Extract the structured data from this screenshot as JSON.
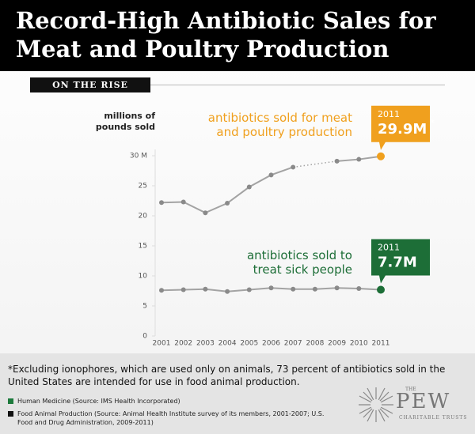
{
  "header": {
    "title": "Record-High Antibiotic Sales for Meat and Poultry Production",
    "section": "ON THE RISE"
  },
  "chart_data": {
    "type": "line",
    "y_label": "millions of pounds sold",
    "categories": [
      "2001",
      "2002",
      "2003",
      "2004",
      "2005",
      "2006",
      "2007",
      "2008",
      "2009",
      "2010",
      "2011"
    ],
    "ylim": [
      0,
      30
    ],
    "yticks": [
      0,
      5,
      10,
      15,
      20,
      25,
      {
        "value": 30,
        "label": "30 M"
      }
    ],
    "line_color": "#a3a3a3",
    "series": [
      {
        "name": "antibiotics sold for meat and poultry production",
        "color": "#f0a01e",
        "values": [
          22.2,
          22.3,
          20.5,
          22.1,
          24.8,
          26.8,
          28.1,
          null,
          29.1,
          29.4,
          29.9
        ],
        "value_labels": [
          null,
          null,
          null,
          null,
          null,
          null,
          null,
          null,
          null,
          null,
          "29.9M"
        ],
        "value_label_mark": "*"
      },
      {
        "name": "antibiotics sold to treat sick people",
        "color": "#1d6e37",
        "values": [
          7.6,
          7.7,
          7.8,
          7.4,
          7.7,
          8.0,
          7.8,
          7.8,
          8.0,
          7.9,
          7.7
        ],
        "value_labels": [
          null,
          null,
          null,
          null,
          null,
          null,
          null,
          null,
          null,
          null,
          "7.7M"
        ]
      }
    ]
  },
  "footer": {
    "footnote": "*Excluding ionophores, which are used only on animals, 73 percent of antibiotics sold in the United States are intended for use in food animal production.",
    "sources": [
      {
        "label": "Human Medicine (Source: IMS Health Incorporated)",
        "color": "#1d7a3c"
      },
      {
        "label": "Food Animal Production (Source: Animal Health Institute survey of its members, 2001-2007; U.S. Food and Drug Administration, 2009-2011)",
        "color": "#111111"
      }
    ],
    "logo": {
      "the": "THE",
      "name": "PEW",
      "tagline": "CHARITABLE TRUSTS"
    }
  }
}
